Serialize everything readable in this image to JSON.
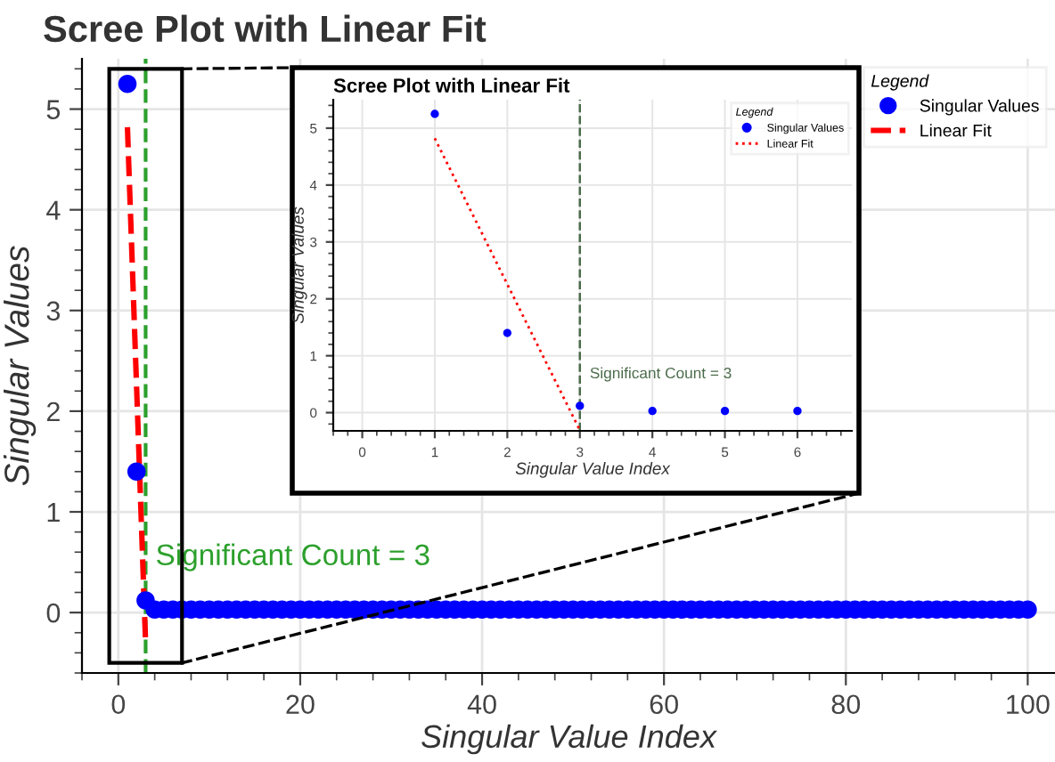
{
  "chart_data": [
    {
      "type": "scatter",
      "title": "Scree Plot with Linear Fit",
      "xlabel": "Singular Value Index",
      "ylabel": "Singular Values",
      "legend_title": "Legend",
      "legend": "top right",
      "grid": true,
      "xlim": [
        -4,
        103
      ],
      "ylim": [
        -0.6,
        5.5
      ],
      "xticks": [
        0,
        20,
        40,
        60,
        80,
        100
      ],
      "yticks": [
        0,
        1,
        2,
        3,
        4,
        5
      ],
      "series": [
        {
          "name": "Singular Values",
          "type": "scatter",
          "marker": "circle",
          "color": "#0000ff",
          "x": [
            1,
            2,
            3,
            4,
            5,
            6,
            7,
            8,
            9,
            10,
            11,
            12,
            13,
            14,
            15,
            16,
            17,
            18,
            19,
            20,
            21,
            22,
            23,
            24,
            25,
            26,
            27,
            28,
            29,
            30,
            31,
            32,
            33,
            34,
            35,
            36,
            37,
            38,
            39,
            40,
            41,
            42,
            43,
            44,
            45,
            46,
            47,
            48,
            49,
            50,
            51,
            52,
            53,
            54,
            55,
            56,
            57,
            58,
            59,
            60,
            61,
            62,
            63,
            64,
            65,
            66,
            67,
            68,
            69,
            70,
            71,
            72,
            73,
            74,
            75,
            76,
            77,
            78,
            79,
            80,
            81,
            82,
            83,
            84,
            85,
            86,
            87,
            88,
            89,
            90,
            91,
            92,
            93,
            94,
            95,
            96,
            97,
            98,
            99,
            100
          ],
          "values": [
            5.25,
            1.4,
            0.12,
            0.03,
            0.03,
            0.03,
            0.03,
            0.03,
            0.03,
            0.03,
            0.03,
            0.03,
            0.03,
            0.03,
            0.03,
            0.03,
            0.03,
            0.03,
            0.03,
            0.03,
            0.03,
            0.03,
            0.03,
            0.03,
            0.03,
            0.03,
            0.03,
            0.03,
            0.03,
            0.03,
            0.03,
            0.03,
            0.03,
            0.03,
            0.03,
            0.03,
            0.03,
            0.03,
            0.03,
            0.03,
            0.03,
            0.03,
            0.03,
            0.03,
            0.03,
            0.03,
            0.03,
            0.03,
            0.03,
            0.03,
            0.03,
            0.03,
            0.03,
            0.03,
            0.03,
            0.03,
            0.03,
            0.03,
            0.03,
            0.03,
            0.03,
            0.03,
            0.03,
            0.03,
            0.03,
            0.03,
            0.03,
            0.03,
            0.03,
            0.03,
            0.03,
            0.03,
            0.03,
            0.03,
            0.03,
            0.03,
            0.03,
            0.03,
            0.03,
            0.03,
            0.03,
            0.03,
            0.03,
            0.03,
            0.03,
            0.03,
            0.03,
            0.03,
            0.03,
            0.03,
            0.03,
            0.03,
            0.03,
            0.03,
            0.03,
            0.03,
            0.03,
            0.03,
            0.03,
            0.03
          ]
        },
        {
          "name": "Linear Fit",
          "type": "line",
          "line_style": "dashed",
          "color": "#ff0000",
          "x": [
            1,
            3
          ],
          "values": [
            4.82,
            -0.31
          ]
        }
      ],
      "ref_lines": [
        {
          "axis": "x",
          "value": 3,
          "color": "#2ca02c",
          "line_style": "dashed"
        }
      ],
      "annotations": [
        {
          "text": "Significant Count = 3",
          "x": 3,
          "y": 0.3
        }
      ]
    },
    {
      "type": "scatter",
      "title": "Scree Plot with Linear Fit",
      "xlabel": "Singular Value Index",
      "ylabel": "Singular Values",
      "legend_title": "Legend",
      "legend": "top right",
      "grid": true,
      "xlim": [
        -0.4,
        6.75
      ],
      "ylim": [
        -0.32,
        5.5
      ],
      "xticks": [
        0,
        1,
        2,
        3,
        4,
        5,
        6
      ],
      "yticks": [
        0,
        1,
        2,
        3,
        4,
        5
      ],
      "series": [
        {
          "name": "Singular Values",
          "type": "scatter",
          "marker": "circle",
          "color": "#0000ff",
          "x": [
            1,
            2,
            3,
            4,
            5,
            6
          ],
          "values": [
            5.25,
            1.4,
            0.12,
            0.03,
            0.03,
            0.03
          ]
        },
        {
          "name": "Linear Fit",
          "type": "line",
          "line_style": "dotted",
          "color": "#ff0000",
          "x": [
            1,
            3
          ],
          "values": [
            4.82,
            -0.31
          ]
        }
      ],
      "ref_lines": [
        {
          "axis": "x",
          "value": 3,
          "color": "#4a6b4a",
          "line_style": "dashed"
        }
      ],
      "annotations": [
        {
          "text": "Significant Count = 3",
          "x": 3,
          "y": 0.3
        }
      ]
    }
  ]
}
